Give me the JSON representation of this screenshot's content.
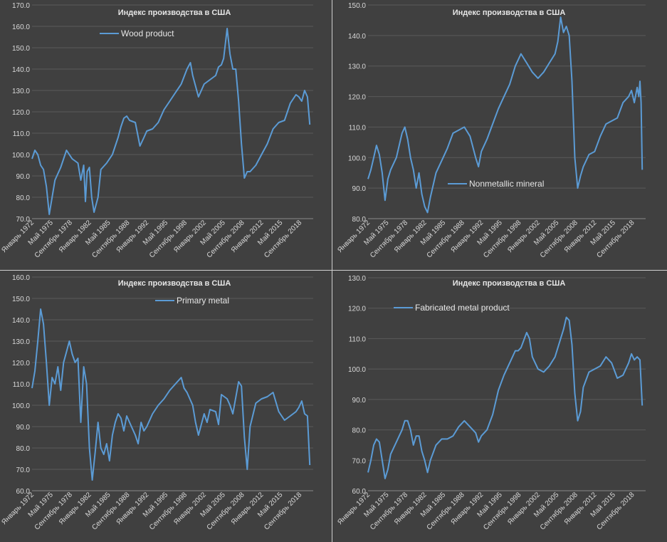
{
  "page": {
    "background": "#404040",
    "line_color": "#5b9bd5"
  },
  "chart_data": [
    {
      "type": "line",
      "title": "Индекс производства в США",
      "series": [
        {
          "name": "Wood product",
          "x": [
            1972.0,
            1972.5,
            1973.0,
            1973.5,
            1974.0,
            1974.5,
            1975.0,
            1975.5,
            1976.0,
            1977.0,
            1978.0,
            1979.0,
            1979.5,
            1980.0,
            1980.5,
            1981.0,
            1981.3,
            1981.6,
            1982.0,
            1982.4,
            1982.8,
            1983.5,
            1984.0,
            1985.0,
            1986.0,
            1987.0,
            1987.5,
            1988.0,
            1988.5,
            1989.0,
            1990.0,
            1990.8,
            1991.5,
            1992.0,
            1993.0,
            1994.0,
            1995.0,
            1996.0,
            1997.0,
            1998.0,
            1999.0,
            1999.6,
            2000.0,
            2001.0,
            2002.0,
            2003.0,
            2004.0,
            2004.5,
            2005.0,
            2005.4,
            2006.0,
            2006.5,
            2007.0,
            2007.5,
            2008.0,
            2008.5,
            2009.0,
            2009.5,
            2010.0,
            2011.0,
            2012.0,
            2013.0,
            2014.0,
            2015.0,
            2016.0,
            2017.0,
            2018.0,
            2018.5,
            2019.0,
            2019.5,
            2020.0,
            2020.4
          ],
          "values": [
            98,
            102,
            100,
            95,
            93,
            85,
            72,
            80,
            88,
            94,
            102,
            98,
            97,
            96,
            88,
            95,
            78,
            92,
            94,
            80,
            73,
            80,
            93,
            96,
            100,
            108,
            113,
            117,
            118,
            116,
            115,
            104,
            108,
            111,
            112,
            115,
            121,
            125,
            129,
            133,
            140,
            143,
            137,
            127,
            133,
            135,
            137,
            141,
            142,
            145,
            159,
            147,
            140,
            140,
            125,
            105,
            89,
            92,
            92,
            95,
            100,
            105,
            112,
            115,
            116,
            124,
            128,
            127,
            125,
            130,
            127,
            114
          ],
          "ylim": [
            70,
            170
          ],
          "yticks": [
            "70.0",
            "80.0",
            "90.0",
            "100.0",
            "110.0",
            "120.0",
            "130.0",
            "140.0",
            "150.0",
            "160.0",
            "170.0"
          ]
        }
      ],
      "xlim": [
        1972,
        2021
      ],
      "xticks": [
        {
          "label": "Январь 1972",
          "x": 1972.0
        },
        {
          "label": "Май 1975",
          "x": 1975.33
        },
        {
          "label": "Сентябрь 1978",
          "x": 1978.67
        },
        {
          "label": "Январь 1982",
          "x": 1982.0
        },
        {
          "label": "Май 1985",
          "x": 1985.33
        },
        {
          "label": "Сентябрь 1988",
          "x": 1988.67
        },
        {
          "label": "Январь 1992",
          "x": 1992.0
        },
        {
          "label": "Май 1995",
          "x": 1995.33
        },
        {
          "label": "Сентябрь 1998",
          "x": 1998.67
        },
        {
          "label": "Январь 2002",
          "x": 2002.0
        },
        {
          "label": "Май 2005",
          "x": 2005.33
        },
        {
          "label": "Сентябрь 2008",
          "x": 2008.67
        },
        {
          "label": "Январь 2012",
          "x": 2012.0
        },
        {
          "label": "Май 2015",
          "x": 2015.33
        },
        {
          "label": "Сентябрь 2018",
          "x": 2018.67
        }
      ],
      "legend": "top-left"
    },
    {
      "type": "line",
      "title": "Индекс производства в США",
      "series": [
        {
          "name": "Nonmetallic mineral",
          "x": [
            1972.0,
            1972.5,
            1973.0,
            1973.5,
            1974.0,
            1974.5,
            1975.0,
            1975.5,
            1976.0,
            1977.0,
            1977.5,
            1978.0,
            1978.5,
            1979.0,
            1979.5,
            1980.0,
            1980.5,
            1981.0,
            1981.5,
            1982.0,
            1982.5,
            1983.0,
            1984.0,
            1985.0,
            1986.0,
            1987.0,
            1988.0,
            1989.0,
            1990.0,
            1991.0,
            1991.5,
            1992.0,
            1993.0,
            1994.0,
            1995.0,
            1996.0,
            1997.0,
            1998.0,
            1999.0,
            2000.0,
            2001.0,
            2002.0,
            2003.0,
            2004.0,
            2005.0,
            2005.5,
            2006.0,
            2006.5,
            2007.0,
            2007.5,
            2008.0,
            2008.5,
            2009.0,
            2009.5,
            2010.0,
            2011.0,
            2012.0,
            2013.0,
            2014.0,
            2015.0,
            2016.0,
            2017.0,
            2018.0,
            2018.5,
            2019.0,
            2019.5,
            2019.8,
            2020.0,
            2020.2,
            2020.4
          ],
          "values": [
            93,
            96,
            100,
            104,
            101,
            95,
            86,
            93,
            96,
            100,
            104,
            108,
            110,
            106,
            100,
            96,
            90,
            95,
            88,
            84,
            82,
            87,
            95,
            99,
            103,
            108,
            109,
            110,
            107,
            100,
            97,
            102,
            106,
            111,
            116,
            120,
            124,
            130,
            134,
            131,
            128,
            126,
            128,
            131,
            134,
            138,
            146,
            141,
            143,
            140,
            125,
            100,
            90,
            94,
            97,
            101,
            102,
            107,
            111,
            112,
            113,
            118,
            120,
            122,
            118,
            123,
            120,
            125,
            118,
            96
          ],
          "ylim": [
            80,
            150
          ],
          "yticks": [
            "80.0",
            "90.0",
            "100.0",
            "110.0",
            "120.0",
            "130.0",
            "140.0",
            "150.0"
          ]
        }
      ],
      "xlim": [
        1972,
        2021
      ],
      "xticks": [
        {
          "label": "Январь 1972",
          "x": 1972.0
        },
        {
          "label": "Май 1975",
          "x": 1975.33
        },
        {
          "label": "Сентябрь 1978",
          "x": 1978.67
        },
        {
          "label": "Январь 1982",
          "x": 1982.0
        },
        {
          "label": "Май 1985",
          "x": 1985.33
        },
        {
          "label": "Сентябрь 1988",
          "x": 1988.67
        },
        {
          "label": "Январь 1992",
          "x": 1992.0
        },
        {
          "label": "Май 1995",
          "x": 1995.33
        },
        {
          "label": "Сентябрь 1998",
          "x": 1998.67
        },
        {
          "label": "Январь 2002",
          "x": 2002.0
        },
        {
          "label": "Май 2005",
          "x": 2005.33
        },
        {
          "label": "Сентябрь 2008",
          "x": 2008.67
        },
        {
          "label": "Январь 2012",
          "x": 2012.0
        },
        {
          "label": "Май 2015",
          "x": 2015.33
        },
        {
          "label": "Сентябрь 2018",
          "x": 2018.67
        }
      ],
      "legend": "bottom-center"
    },
    {
      "type": "line",
      "title": "Индекс производства в США",
      "series": [
        {
          "name": "Primary metal",
          "x": [
            1972.0,
            1972.5,
            1973.0,
            1973.5,
            1974.0,
            1974.5,
            1975.0,
            1975.5,
            1976.0,
            1976.5,
            1977.0,
            1977.5,
            1978.0,
            1978.5,
            1979.0,
            1979.5,
            1980.0,
            1980.5,
            1981.0,
            1981.5,
            1982.0,
            1982.5,
            1983.0,
            1983.5,
            1984.0,
            1984.5,
            1985.0,
            1985.5,
            1986.0,
            1986.5,
            1987.0,
            1987.5,
            1988.0,
            1988.5,
            1989.0,
            1990.0,
            1990.5,
            1991.0,
            1991.5,
            1992.0,
            1993.0,
            1994.0,
            1995.0,
            1996.0,
            1997.0,
            1998.0,
            1998.5,
            1999.0,
            2000.0,
            2000.5,
            2001.0,
            2002.0,
            2002.5,
            2003.0,
            2004.0,
            2004.5,
            2005.0,
            2006.0,
            2006.5,
            2007.0,
            2008.0,
            2008.5,
            2009.0,
            2009.5,
            2010.0,
            2011.0,
            2012.0,
            2013.0,
            2014.0,
            2015.0,
            2016.0,
            2017.0,
            2018.0,
            2018.5,
            2019.0,
            2019.5,
            2020.0,
            2020.4
          ],
          "values": [
            108,
            116,
            130,
            145,
            138,
            120,
            100,
            113,
            110,
            118,
            107,
            120,
            125,
            130,
            124,
            120,
            122,
            92,
            118,
            110,
            80,
            65,
            78,
            92,
            80,
            77,
            82,
            74,
            86,
            92,
            96,
            94,
            88,
            95,
            92,
            86,
            82,
            92,
            88,
            90,
            96,
            100,
            103,
            107,
            110,
            113,
            108,
            106,
            100,
            92,
            86,
            96,
            92,
            98,
            97,
            91,
            105,
            103,
            100,
            96,
            111,
            109,
            85,
            70,
            90,
            101,
            103,
            104,
            106,
            97,
            93,
            95,
            97,
            99,
            102,
            96,
            95,
            72
          ],
          "ylim": [
            60,
            160
          ],
          "yticks": [
            "60.0",
            "70.0",
            "80.0",
            "90.0",
            "100.0",
            "110.0",
            "120.0",
            "130.0",
            "140.0",
            "150.0",
            "160.0"
          ]
        }
      ],
      "xlim": [
        1972,
        2021
      ],
      "xticks": [
        {
          "label": "Январь 1972",
          "x": 1972.0
        },
        {
          "label": "Май 1975",
          "x": 1975.33
        },
        {
          "label": "Сентябрь 1978",
          "x": 1978.67
        },
        {
          "label": "Январь 1982",
          "x": 1982.0
        },
        {
          "label": "Май 1985",
          "x": 1985.33
        },
        {
          "label": "Сентябрь 1988",
          "x": 1988.67
        },
        {
          "label": "Январь 1992",
          "x": 1992.0
        },
        {
          "label": "Май 1995",
          "x": 1995.33
        },
        {
          "label": "Сентябрь 1998",
          "x": 1998.67
        },
        {
          "label": "Январь 2002",
          "x": 2002.0
        },
        {
          "label": "Май 2005",
          "x": 2005.33
        },
        {
          "label": "Сентябрь 2008",
          "x": 2008.67
        },
        {
          "label": "Январь 2012",
          "x": 2012.0
        },
        {
          "label": "Май 2015",
          "x": 2015.33
        },
        {
          "label": "Сентябрь 2018",
          "x": 2018.67
        }
      ],
      "legend": "top-center"
    },
    {
      "type": "line",
      "title": "Индекс производства в США",
      "series": [
        {
          "name": "Fabricated metal product",
          "x": [
            1972.0,
            1972.5,
            1973.0,
            1973.5,
            1974.0,
            1974.5,
            1975.0,
            1975.5,
            1976.0,
            1977.0,
            1978.0,
            1978.5,
            1979.0,
            1979.5,
            1980.0,
            1980.5,
            1981.0,
            1981.5,
            1982.0,
            1982.5,
            1983.0,
            1984.0,
            1985.0,
            1986.0,
            1987.0,
            1988.0,
            1989.0,
            1990.0,
            1991.0,
            1991.5,
            1992.0,
            1993.0,
            1994.0,
            1995.0,
            1996.0,
            1997.0,
            1998.0,
            1998.5,
            1999.0,
            2000.0,
            2000.5,
            2001.0,
            2002.0,
            2003.0,
            2004.0,
            2005.0,
            2006.0,
            2006.5,
            2007.0,
            2007.5,
            2008.0,
            2008.5,
            2009.0,
            2009.5,
            2010.0,
            2011.0,
            2012.0,
            2013.0,
            2014.0,
            2015.0,
            2016.0,
            2017.0,
            2018.0,
            2018.5,
            2019.0,
            2019.5,
            2020.0,
            2020.4
          ],
          "values": [
            66,
            70,
            75,
            77,
            76,
            70,
            64,
            67,
            72,
            76,
            80,
            83,
            83,
            80,
            75,
            78,
            78,
            73,
            70,
            66,
            70,
            75,
            77,
            77,
            78,
            81,
            83,
            81,
            79,
            76,
            78,
            80,
            85,
            93,
            98,
            102,
            106,
            106,
            107,
            112,
            110,
            104,
            100,
            99,
            101,
            104,
            110,
            113,
            117,
            116,
            108,
            92,
            83,
            86,
            94,
            99,
            100,
            101,
            104,
            102,
            97,
            98,
            102,
            105,
            103,
            104,
            103,
            88
          ],
          "ylim": [
            60,
            130
          ],
          "yticks": [
            "60.0",
            "70.0",
            "80.0",
            "90.0",
            "100.0",
            "110.0",
            "120.0",
            "130.0"
          ]
        }
      ],
      "xlim": [
        1972,
        2021
      ],
      "xticks": [
        {
          "label": "Январь 1972",
          "x": 1972.0
        },
        {
          "label": "Май 1975",
          "x": 1975.33
        },
        {
          "label": "Сентябрь 1978",
          "x": 1978.67
        },
        {
          "label": "Январь 1982",
          "x": 1982.0
        },
        {
          "label": "Май 1985",
          "x": 1985.33
        },
        {
          "label": "Сентябрь 1988",
          "x": 1988.67
        },
        {
          "label": "Январь 1992",
          "x": 1992.0
        },
        {
          "label": "Май 1995",
          "x": 1995.33
        },
        {
          "label": "Сентябрь 1998",
          "x": 1998.67
        },
        {
          "label": "Январь 2002",
          "x": 2002.0
        },
        {
          "label": "Май 2005",
          "x": 2005.33
        },
        {
          "label": "Сентябрь 2008",
          "x": 2008.67
        },
        {
          "label": "Январь 2012",
          "x": 2012.0
        },
        {
          "label": "Май 2015",
          "x": 2015.33
        },
        {
          "label": "Сентябрь 2018",
          "x": 2018.67
        }
      ],
      "legend": "top-left"
    }
  ]
}
